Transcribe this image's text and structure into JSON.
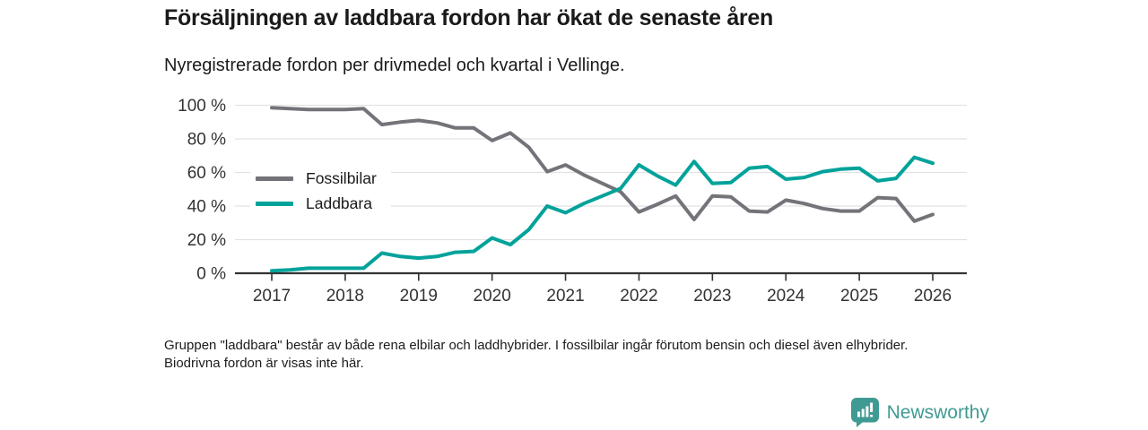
{
  "header": {
    "title": "Försäljningen av laddbara fordon har ökat de senaste åren",
    "subtitle": "Nyregistrerade fordon per drivmedel och kvartal i Vellinge."
  },
  "legend": [
    {
      "label": "Fossilbilar",
      "color": "#737379"
    },
    {
      "label": "Laddbara",
      "color": "#00a29a"
    }
  ],
  "chart_data": {
    "type": "line",
    "title": "Försäljningen av laddbara fordon har ökat de senaste åren",
    "subtitle": "Nyregistrerade fordon per drivmedel och kvartal i Vellinge.",
    "xlabel": "",
    "ylabel": "",
    "ylim": [
      0,
      100
    ],
    "grid": true,
    "legend_position": "inside-left",
    "y_ticks": [
      0,
      20,
      40,
      60,
      80,
      100
    ],
    "y_tick_labels": [
      "0 %",
      "20 %",
      "40 %",
      "60 %",
      "80 %",
      "100 %"
    ],
    "x_tick_labels": [
      "2017",
      "2018",
      "2019",
      "2020",
      "2021",
      "2022",
      "2023",
      "2024",
      "2025",
      "2026"
    ],
    "x": [
      "2017 Q1",
      "2017 Q2",
      "2017 Q3",
      "2017 Q4",
      "2018 Q1",
      "2018 Q2",
      "2018 Q3",
      "2018 Q4",
      "2019 Q1",
      "2019 Q2",
      "2019 Q3",
      "2019 Q4",
      "2020 Q1",
      "2020 Q2",
      "2020 Q3",
      "2020 Q4",
      "2021 Q1",
      "2021 Q2",
      "2021 Q3",
      "2021 Q4",
      "2022 Q1",
      "2022 Q2",
      "2022 Q3",
      "2022 Q4",
      "2023 Q1",
      "2023 Q2",
      "2023 Q3",
      "2023 Q4",
      "2024 Q1",
      "2024 Q2",
      "2024 Q3",
      "2024 Q4",
      "2025 Q1",
      "2025 Q2",
      "2025 Q3",
      "2025 Q4",
      "2026 Q1"
    ],
    "series": [
      {
        "name": "Fossilbilar",
        "color": "#737379",
        "values": [
          98.5,
          98,
          97.5,
          97.5,
          97.5,
          98,
          88.5,
          90,
          91,
          89.5,
          86.5,
          86.5,
          79,
          83.5,
          75,
          60.5,
          64.5,
          58.5,
          53.5,
          48.5,
          36.5,
          41,
          46,
          32,
          46,
          45.5,
          37,
          36.5,
          43.5,
          41.5,
          38.5,
          37,
          37,
          45,
          44.5,
          31,
          35
        ]
      },
      {
        "name": "Laddbara",
        "color": "#00a29a",
        "values": [
          1.5,
          2,
          3,
          3,
          3,
          3,
          12,
          10,
          9,
          10,
          12.5,
          13,
          21,
          17,
          26,
          40,
          36,
          41.5,
          46,
          50.5,
          64.5,
          58,
          52.5,
          66.5,
          53.5,
          54,
          62.5,
          63.5,
          56,
          57,
          60.5,
          62,
          62.5,
          55,
          56.5,
          69,
          65.5
        ]
      }
    ]
  },
  "footnote": {
    "text": "Gruppen \"laddbara\" består av både rena elbilar och laddhybrider. I fossilbilar ingår förutom bensin och diesel även elhybrider. Biodrivna fordon är visas inte här."
  },
  "logo": {
    "text": "Newsworthy",
    "color": "#3f9a93",
    "icon": "newsworthy-bar-chart-bubble-icon"
  }
}
